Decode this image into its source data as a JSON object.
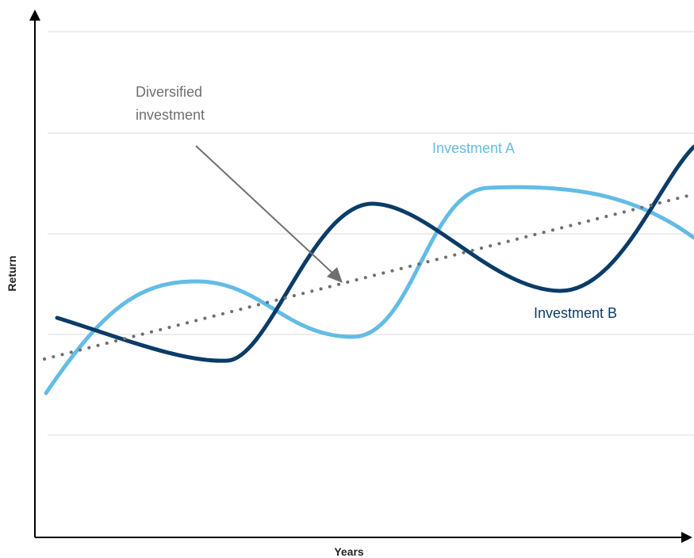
{
  "chart_data": {
    "type": "line",
    "xlabel": "Years",
    "ylabel": "Return",
    "grid": true,
    "series": [
      {
        "name": "Investment A",
        "color": "#63bce5",
        "style": "solid",
        "points": [
          [
            0.0,
            2.0
          ],
          [
            0.23,
            3.4
          ],
          [
            0.48,
            2.6
          ],
          [
            0.68,
            3.9
          ],
          [
            0.9,
            3.7
          ],
          [
            1.0,
            3.2
          ]
        ]
      },
      {
        "name": "Investment B",
        "color": "#0b3c68",
        "style": "solid",
        "points": [
          [
            0.02,
            2.5
          ],
          [
            0.28,
            2.0
          ],
          [
            0.52,
            3.7
          ],
          [
            0.83,
            2.4
          ],
          [
            1.0,
            4.0
          ]
        ]
      },
      {
        "name": "",
        "color": "#6f6f6f",
        "style": "dotted",
        "points": [
          [
            0.0,
            2.1
          ],
          [
            1.0,
            3.5
          ]
        ]
      }
    ],
    "annotations": [
      {
        "text_lines": [
          "Diversified",
          "investment"
        ],
        "color": "#6f6f6f"
      }
    ]
  }
}
